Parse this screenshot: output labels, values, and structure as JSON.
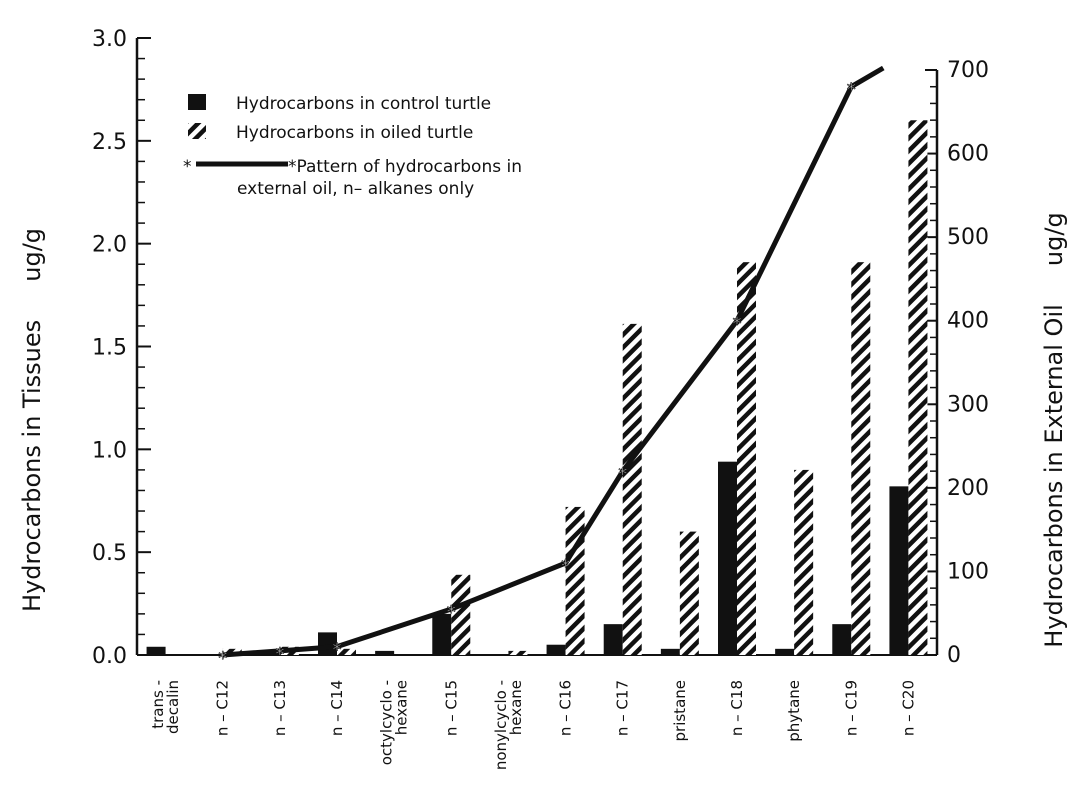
{
  "chart_data": {
    "type": "bar",
    "categories": [
      [
        "trans -",
        "decalin"
      ],
      [
        "n – C12"
      ],
      [
        "n – C13"
      ],
      [
        "n – C14"
      ],
      [
        "octylcyclo -",
        "hexane"
      ],
      [
        "n – C15"
      ],
      [
        "nonylcyclo -",
        "hexane"
      ],
      [
        "n – C16"
      ],
      [
        "n – C17"
      ],
      [
        "pristane"
      ],
      [
        "n – C18"
      ],
      [
        "phytane"
      ],
      [
        "n – C19"
      ],
      [
        "n – C20"
      ]
    ],
    "series": [
      {
        "name": "Hydrocarbons in control turtle",
        "values": [
          0.04,
          0.0,
          0.02,
          0.11,
          0.02,
          0.2,
          0.0,
          0.05,
          0.15,
          0.03,
          0.94,
          0.03,
          0.15,
          0.82
        ],
        "fill": "solid",
        "color": "#111111"
      },
      {
        "name": "Hydrocarbons in oiled turtle",
        "values": [
          0.0,
          0.03,
          0.04,
          0.03,
          0.0,
          0.39,
          0.02,
          0.72,
          1.61,
          0.6,
          1.91,
          0.9,
          1.91,
          2.6
        ],
        "fill": "hatched",
        "color": "#111111"
      }
    ],
    "line_series": {
      "name": "Pattern of hydrocarbons in external oil, n– alkanes only",
      "category_indices": [
        1,
        2,
        3,
        5,
        7,
        8,
        10,
        12,
        13
      ],
      "values": [
        0,
        5,
        10,
        55,
        110,
        220,
        400,
        680,
        720
      ]
    },
    "left_axis": {
      "label": "Hydrocarbons in Tissues     ug/g",
      "ylim": [
        0,
        3.0
      ],
      "ticks": [
        "0.0",
        "0.5",
        "1.0",
        "1.5",
        "2.0",
        "2.5",
        "3.0"
      ],
      "tick_values": [
        0,
        0.5,
        1.0,
        1.5,
        2.0,
        2.5,
        3.0
      ]
    },
    "right_axis": {
      "label": "Hydrocarbons in External Oil     ug/g",
      "ylim": [
        0,
        700
      ],
      "ticks": [
        "0",
        "100",
        "200",
        "300",
        "400",
        "500",
        "600",
        "700"
      ],
      "tick_values": [
        0,
        100,
        200,
        300,
        400,
        500,
        600,
        700
      ]
    },
    "legend": {
      "position": "top-left",
      "items": [
        "Hydrocarbons in control turtle",
        "Hydrocarbons in oiled turtle",
        "*Pattern of hydrocarbons in",
        "external oil, n– alkanes only"
      ]
    },
    "grid": false
  }
}
